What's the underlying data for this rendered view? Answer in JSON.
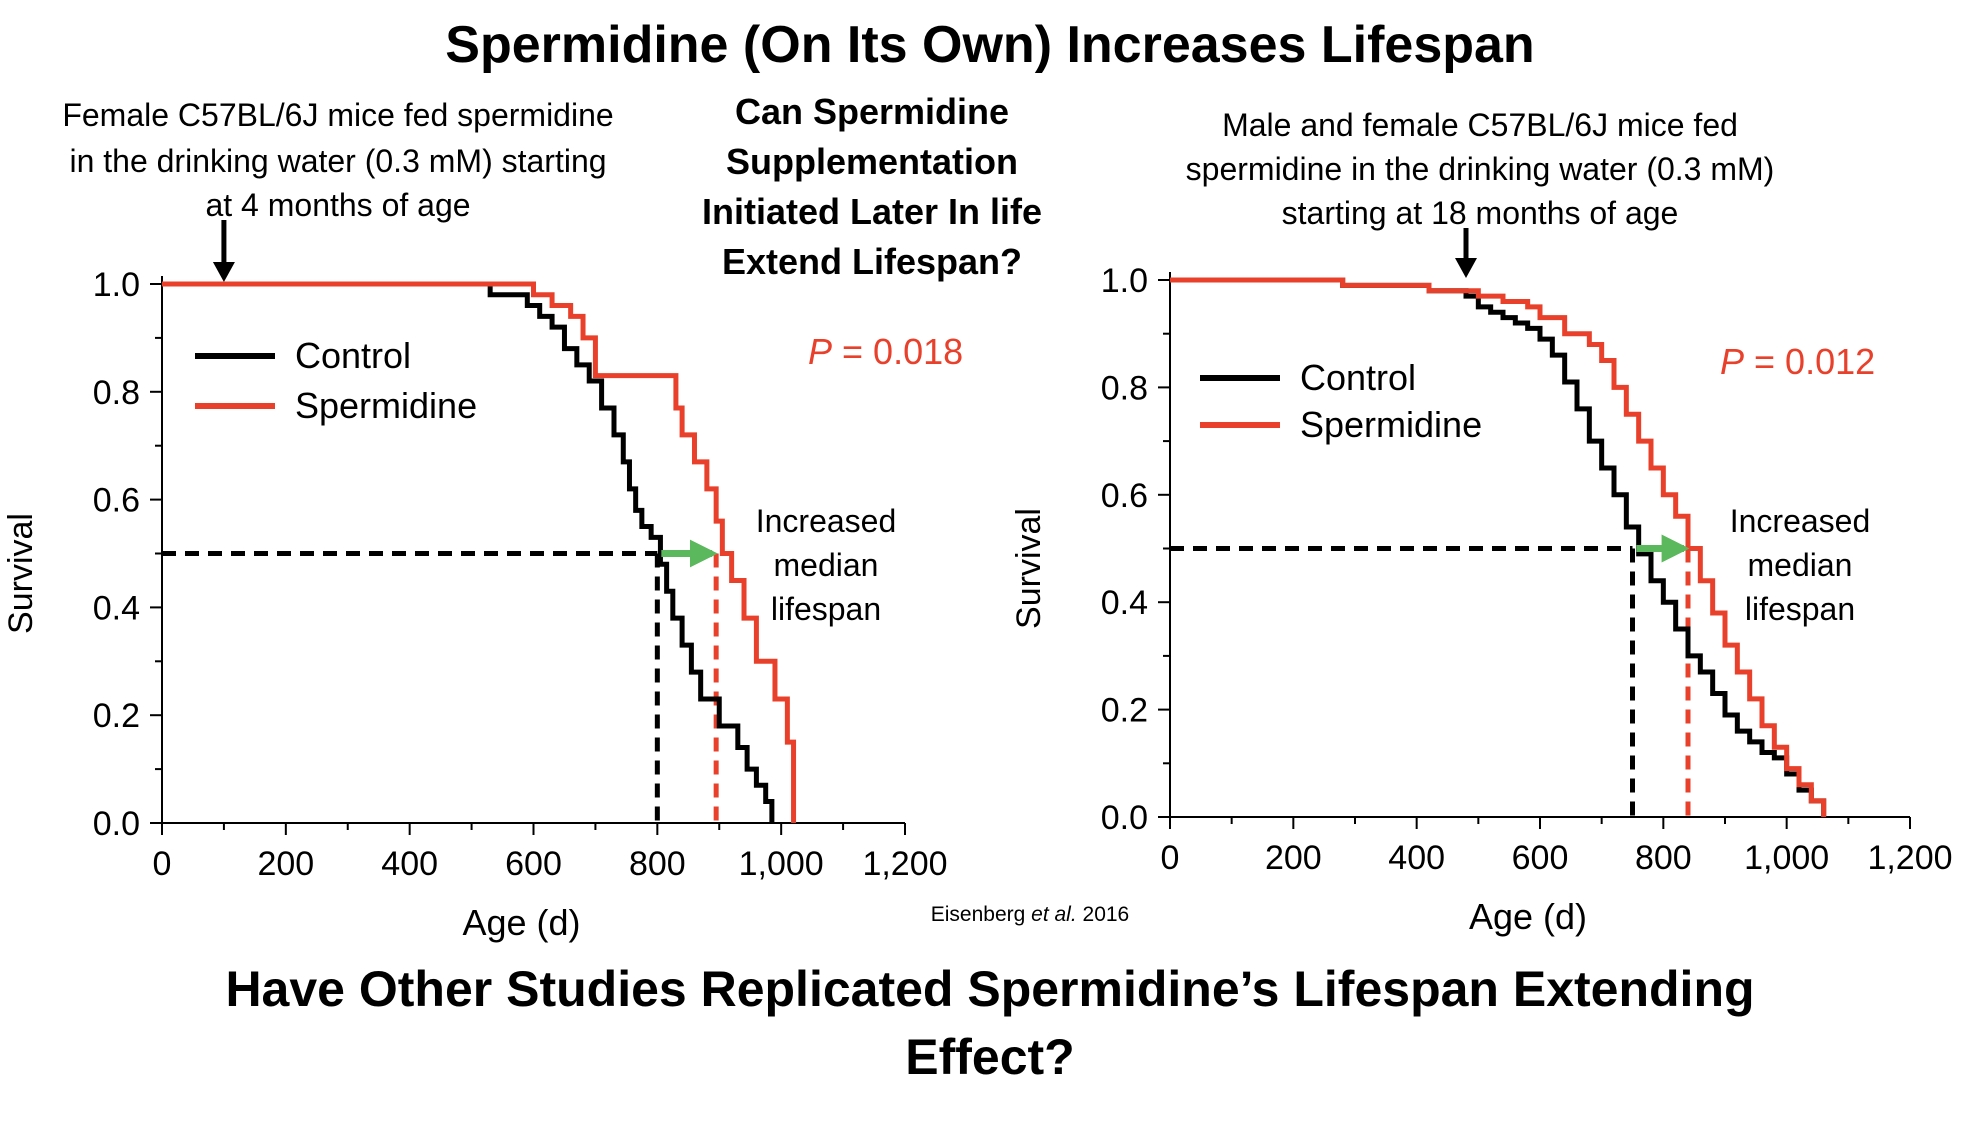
{
  "slide": {
    "title": "Spermidine (On Its Own) Increases Lifespan",
    "question_center": [
      "Can Spermidine",
      "Supplementation",
      "Initiated Later In life",
      "Extend Lifespan?"
    ],
    "citation_author": "Eisenberg ",
    "citation_etal": "et al.",
    "citation_year": " 2016",
    "bottom_question": [
      "Have Other Studies Replicated Spermidine’s Lifespan Extending",
      "Effect?"
    ]
  },
  "colors": {
    "control": "#000000",
    "spermidine": "#e8402a",
    "arrow": "#5cb85c"
  },
  "chart_data": [
    {
      "type": "line",
      "plot_kind": "kaplan-meier survival",
      "caption": [
        "Female C57BL/6J mice fed spermidine",
        "in the drinking water (0.3 mM) starting",
        "at 4 months of age"
      ],
      "xlabel": "Age (d)",
      "ylabel": "Survival",
      "xlim": [
        0,
        1200
      ],
      "ylim": [
        0,
        1.0
      ],
      "xticks": [
        0,
        200,
        400,
        600,
        800,
        1000,
        1200
      ],
      "xtick_labels": [
        "0",
        "200",
        "400",
        "600",
        "800",
        "1,000",
        "1,200"
      ],
      "yticks": [
        0,
        0.2,
        0.4,
        0.6,
        0.8,
        1.0
      ],
      "ytick_labels": [
        "0.0",
        "0.2",
        "0.4",
        "0.6",
        "0.8",
        "1.0"
      ],
      "legend_position": "top-left",
      "p_label": "P",
      "p_value": " = 0.018",
      "annotation": [
        "Increased",
        "median",
        "lifespan"
      ],
      "start_arrow_x": 100,
      "median_control": 800,
      "median_spermidine": 895,
      "median_survival": 0.5,
      "series": [
        {
          "name": "Control",
          "color_key": "control",
          "x": [
            0,
            520,
            530,
            570,
            590,
            610,
            630,
            650,
            670,
            690,
            710,
            730,
            745,
            755,
            765,
            775,
            790,
            805,
            815,
            825,
            840,
            855,
            870,
            900,
            930,
            945,
            960,
            975,
            985
          ],
          "y": [
            1.0,
            1.0,
            0.98,
            0.98,
            0.96,
            0.94,
            0.92,
            0.88,
            0.85,
            0.82,
            0.77,
            0.72,
            0.67,
            0.62,
            0.58,
            0.55,
            0.53,
            0.48,
            0.43,
            0.38,
            0.33,
            0.28,
            0.23,
            0.18,
            0.14,
            0.1,
            0.07,
            0.04,
            0.0
          ]
        },
        {
          "name": "Spermidine",
          "color_key": "spermidine",
          "x": [
            0,
            580,
            600,
            630,
            660,
            680,
            700,
            820,
            830,
            840,
            860,
            880,
            895,
            905,
            920,
            940,
            960,
            990,
            1010,
            1020
          ],
          "y": [
            1.0,
            1.0,
            0.98,
            0.96,
            0.94,
            0.9,
            0.83,
            0.83,
            0.77,
            0.72,
            0.67,
            0.62,
            0.56,
            0.5,
            0.45,
            0.38,
            0.3,
            0.23,
            0.15,
            0.0
          ]
        }
      ]
    },
    {
      "type": "line",
      "plot_kind": "kaplan-meier survival",
      "caption": [
        "Male and female C57BL/6J mice fed",
        "spermidine in the drinking water (0.3 mM)",
        "starting at 18 months of age"
      ],
      "xlabel": "Age (d)",
      "ylabel": "Survival",
      "xlim": [
        0,
        1200
      ],
      "ylim": [
        0,
        1.0
      ],
      "xticks": [
        0,
        200,
        400,
        600,
        800,
        1000,
        1200
      ],
      "xtick_labels": [
        "0",
        "200",
        "400",
        "600",
        "800",
        "1,000",
        "1,200"
      ],
      "yticks": [
        0,
        0.2,
        0.4,
        0.6,
        0.8,
        1.0
      ],
      "ytick_labels": [
        "0.0",
        "0.2",
        "0.4",
        "0.6",
        "0.8",
        "1.0"
      ],
      "legend_position": "top-left",
      "p_label": "P",
      "p_value": " = 0.012",
      "annotation": [
        "Increased",
        "median",
        "lifespan"
      ],
      "start_arrow_x": 480,
      "median_control": 750,
      "median_spermidine": 840,
      "median_survival": 0.5,
      "series": [
        {
          "name": "Control",
          "color_key": "control",
          "x": [
            0,
            280,
            420,
            480,
            500,
            520,
            540,
            560,
            580,
            600,
            620,
            640,
            660,
            680,
            700,
            720,
            740,
            760,
            780,
            800,
            820,
            840,
            860,
            880,
            900,
            920,
            940,
            960,
            980,
            1000,
            1020,
            1040,
            1060
          ],
          "y": [
            1.0,
            0.99,
            0.98,
            0.97,
            0.95,
            0.94,
            0.93,
            0.92,
            0.91,
            0.89,
            0.86,
            0.81,
            0.76,
            0.7,
            0.65,
            0.6,
            0.54,
            0.49,
            0.44,
            0.4,
            0.35,
            0.3,
            0.27,
            0.23,
            0.19,
            0.16,
            0.14,
            0.12,
            0.11,
            0.08,
            0.05,
            0.03,
            0.0
          ]
        },
        {
          "name": "Spermidine",
          "color_key": "spermidine",
          "x": [
            0,
            280,
            420,
            500,
            540,
            580,
            600,
            640,
            680,
            700,
            720,
            740,
            760,
            780,
            800,
            820,
            840,
            860,
            880,
            900,
            920,
            940,
            960,
            980,
            1000,
            1020,
            1040,
            1060
          ],
          "y": [
            1.0,
            0.99,
            0.98,
            0.97,
            0.96,
            0.95,
            0.93,
            0.9,
            0.88,
            0.85,
            0.8,
            0.75,
            0.7,
            0.65,
            0.6,
            0.56,
            0.5,
            0.44,
            0.38,
            0.32,
            0.27,
            0.22,
            0.17,
            0.13,
            0.09,
            0.06,
            0.03,
            0.0
          ]
        }
      ]
    }
  ]
}
